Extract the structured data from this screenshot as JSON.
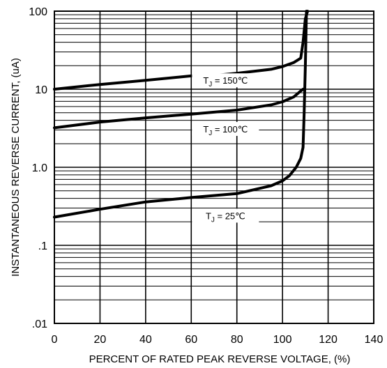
{
  "chart_data": {
    "type": "line",
    "title": "",
    "xlabel": "PERCENT OF RATED PEAK REVERSE VOLTAGE, (%)",
    "ylabel": "INSTANTANEOUS REVERSE CURRENT, (uA)",
    "xlim": [
      0,
      140
    ],
    "ylim": [
      0.01,
      100
    ],
    "yscale": "log",
    "grid": true,
    "x_ticks": [
      "0",
      "20",
      "40",
      "60",
      "80",
      "100",
      "120",
      "140"
    ],
    "x_tick_values": [
      0,
      20,
      40,
      60,
      80,
      100,
      120,
      140
    ],
    "y_ticks": [
      "100",
      "10",
      "1.0",
      ".1",
      ".01"
    ],
    "y_tick_values": [
      100,
      10,
      1,
      0.1,
      0.01
    ],
    "series": [
      {
        "name": "TJ = 150℃",
        "label_main": "T",
        "label_sub": "J",
        "label_rest": " = 150℃",
        "label_at": [
          75,
          13
        ],
        "x": [
          0,
          20,
          40,
          60,
          66,
          80,
          95,
          100,
          105,
          108,
          109,
          110,
          111
        ],
        "y": [
          10,
          11.5,
          13,
          14.8,
          14.6,
          16,
          18,
          19.5,
          22,
          25,
          40,
          80,
          100
        ]
      },
      {
        "name": "TJ = 100℃",
        "label_main": "T",
        "label_sub": "J",
        "label_rest": " = 100℃",
        "label_at": [
          75,
          3.1
        ],
        "x": [
          0,
          20,
          40,
          60,
          80,
          95,
          100,
          105,
          108,
          109
        ],
        "y": [
          3.2,
          3.8,
          4.3,
          4.8,
          5.4,
          6.3,
          6.9,
          8,
          9.5,
          10
        ]
      },
      {
        "name": "TJ = 25℃",
        "label_main": "T",
        "label_sub": "J",
        "label_rest": " = 25℃",
        "label_at": [
          75,
          0.24
        ],
        "x": [
          0,
          20,
          40,
          60,
          80,
          95,
          100,
          103,
          106,
          108,
          109,
          109.5,
          110,
          110.5
        ],
        "y": [
          0.23,
          0.29,
          0.36,
          0.41,
          0.46,
          0.58,
          0.67,
          0.78,
          1.0,
          1.3,
          1.8,
          5,
          20,
          100
        ]
      }
    ]
  }
}
